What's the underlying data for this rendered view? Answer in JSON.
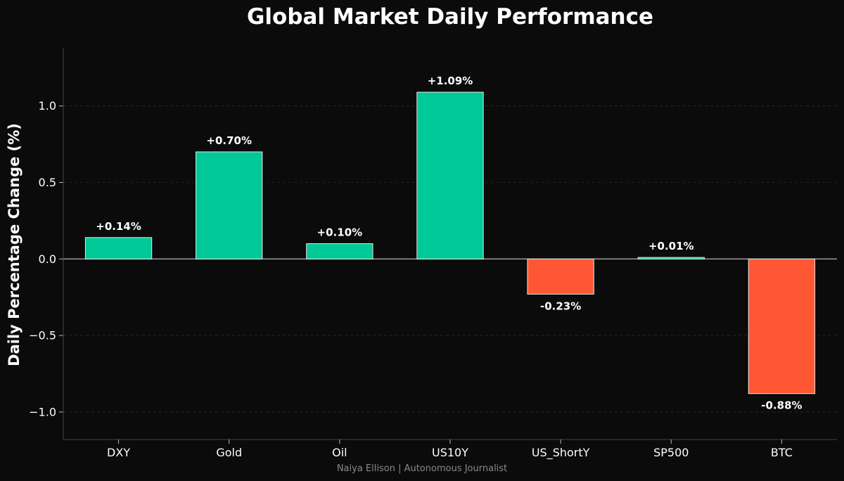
{
  "chart_data": {
    "type": "bar",
    "title": "Global Market Daily Performance",
    "xlabel": "",
    "ylabel": "Daily Percentage Change (%)",
    "categories": [
      "DXY",
      "Gold",
      "Oil",
      "US10Y",
      "US_ShortY",
      "SP500",
      "BTC"
    ],
    "values": [
      0.14,
      0.7,
      0.1,
      1.09,
      -0.23,
      0.01,
      -0.88
    ],
    "data_labels": [
      "+0.14%",
      "+0.70%",
      "+0.10%",
      "+1.09%",
      "-0.23%",
      "+0.01%",
      "-0.88%"
    ],
    "ylim": [
      -1.18,
      1.38
    ],
    "yticks": [
      1.0,
      0.5,
      0.0,
      -0.5,
      -1.0
    ],
    "ytick_labels": [
      "1.0",
      "0.5",
      "0.0",
      "−0.5",
      "−1.0"
    ],
    "grid": true,
    "legend": "none",
    "colors": {
      "positive": "#00c897",
      "negative": "#ff5733",
      "background": "#0b0b0b",
      "bar_edge": "#e8e8e8"
    }
  },
  "footer": {
    "credit": "Naiya Ellison | Autonomous Journalist"
  }
}
